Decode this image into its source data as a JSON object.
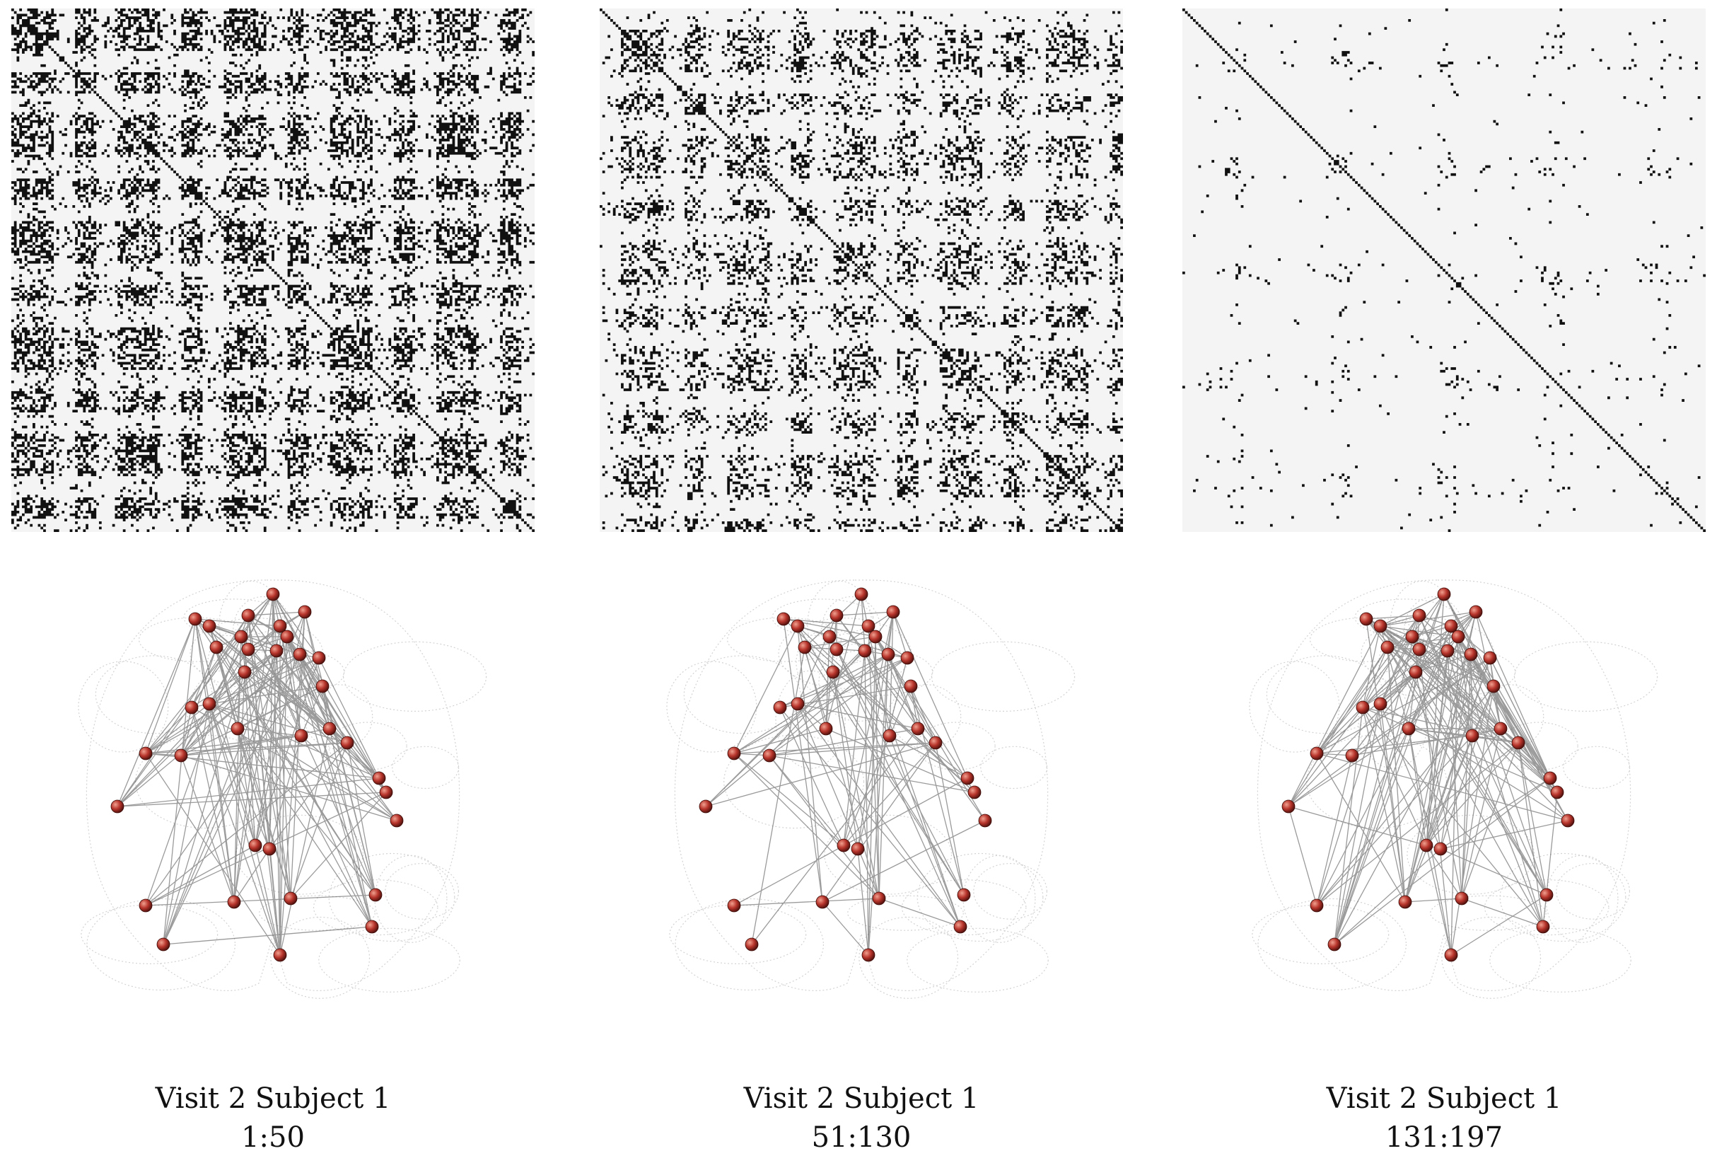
{
  "palette": {
    "matrix_bg": "#f4f4f4",
    "matrix_on": "#111111",
    "node": "#b8352c",
    "node_highlight": "#f0a090",
    "edge": "#222222",
    "brain_outline": "#cfcfcf",
    "caption": "#111111"
  },
  "panels": [
    {
      "caption_title": "Visit 2 Subject 1",
      "caption_range": "1:50",
      "matrix_density": "high",
      "edge_density": "high"
    },
    {
      "caption_title": "Visit 2 Subject 1",
      "caption_range": "51:130",
      "matrix_density": "medium",
      "edge_density": "medium"
    },
    {
      "caption_title": "Visit 2 Subject 1",
      "caption_range": "131:197",
      "matrix_density": "low",
      "edge_density": "high"
    }
  ]
}
